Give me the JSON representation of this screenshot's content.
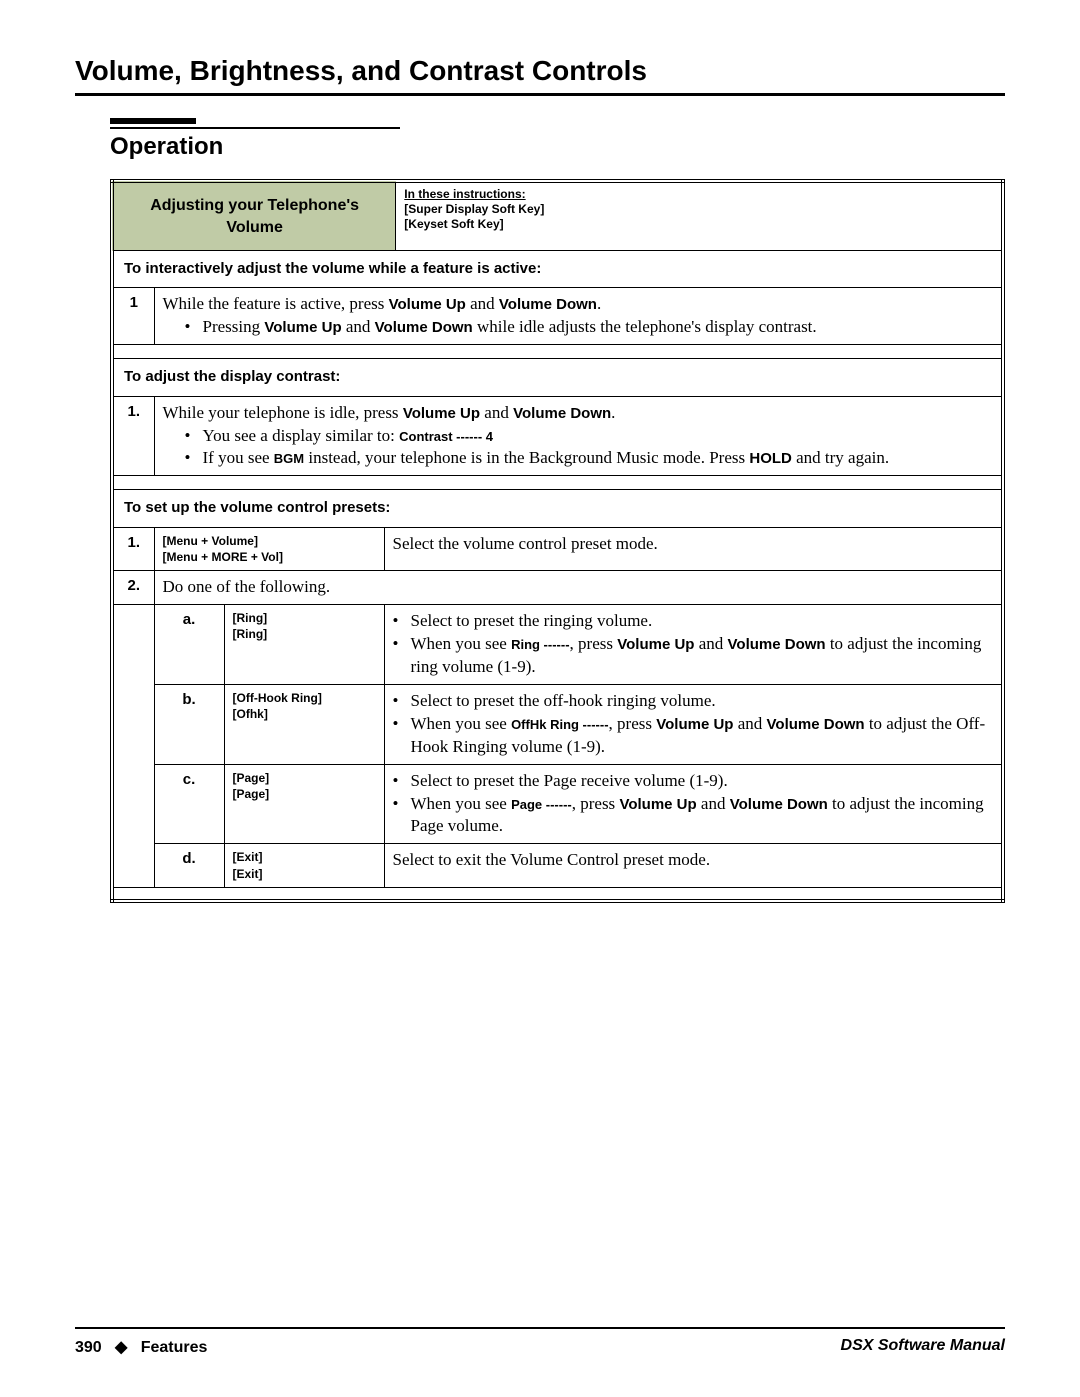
{
  "page_title": "Volume, Brightness, and Contrast Controls",
  "section_title": "Operation",
  "colors": {
    "header_bg": "#c0cba6",
    "rule": "#000000",
    "bg": "#ffffff"
  },
  "header": {
    "title": "Adjusting your Telephone's Volume",
    "notes_line1": "In these instructions:",
    "notes_line2": "[Super Display Soft Key]",
    "notes_line3": "[Keyset Soft Key]"
  },
  "sec1": {
    "heading": "To interactively adjust the volume while a feature is active:",
    "num": "1",
    "line_pre": "While the feature is active, press ",
    "vu": "Volume Up",
    "and": " and ",
    "vd": "Volume Down",
    "period": ".",
    "bullet_pre": "Pressing ",
    "bullet_post": " while idle adjusts the telephone's display contrast."
  },
  "sec2": {
    "heading": "To adjust the display contrast:",
    "num": "1.",
    "line_pre": "While your telephone is idle, press ",
    "vu": "Volume Up",
    "and": " and ",
    "vd": "Volume Down",
    "period": ".",
    "b1_pre": "You see a display similar to: ",
    "b1_code": "Contrast ------ 4",
    "b2_pre": "If you see ",
    "b2_code": "BGM",
    "b2_mid": " instead, your telephone is in the Background Music mode. Press ",
    "hold": "HOLD",
    "b2_post": " and try again."
  },
  "sec3": {
    "heading": "To set up the volume control presets:",
    "row1": {
      "num": "1.",
      "sk1": "[Menu + Volume]",
      "sk2": "[Menu + MORE + Vol]",
      "desc": "Select the volume control preset mode."
    },
    "row2": {
      "num": "2.",
      "desc": "Do one of the following."
    },
    "a": {
      "letter": "a.",
      "sk1": "[Ring]",
      "sk2": "[Ring]",
      "b1": "Select to preset the ringing volume.",
      "b2_pre": "When you see ",
      "b2_code": "Ring ------",
      "b2_mid": ", press ",
      "vu": "Volume Up",
      "and": " and ",
      "vd": "Volume Down",
      "b2_post": " to adjust the incoming ring volume (1-9)."
    },
    "b": {
      "letter": "b.",
      "sk1": "[Off-Hook Ring]",
      "sk2": "[Ofhk]",
      "b1": "Select to preset the off-hook ringing volume.",
      "b2_pre": "When you see ",
      "b2_code": "OffHk Ring ------",
      "b2_mid": ", press ",
      "vu": "Volume Up",
      "and": " and ",
      "vd": "Volume Down",
      "b2_post": " to adjust the Off-Hook Ringing volume (1-9)."
    },
    "c": {
      "letter": "c.",
      "sk1": "[Page]",
      "sk2": "[Page]",
      "b1": "Select to preset the Page receive volume (1-9).",
      "b2_pre": "When you see ",
      "b2_code": "Page ------",
      "b2_mid": ", press ",
      "vu": "Volume Up",
      "and": " and ",
      "vd": "Volume Down",
      "b2_post": " to adjust the incoming Page volume."
    },
    "d": {
      "letter": "d.",
      "sk1": "[Exit]",
      "sk2": "[Exit]",
      "desc": "Select to exit the Volume Control preset mode."
    }
  },
  "footer": {
    "page_num": "390",
    "diamond": "◆",
    "section": "Features",
    "manual": "DSX Software Manual"
  }
}
